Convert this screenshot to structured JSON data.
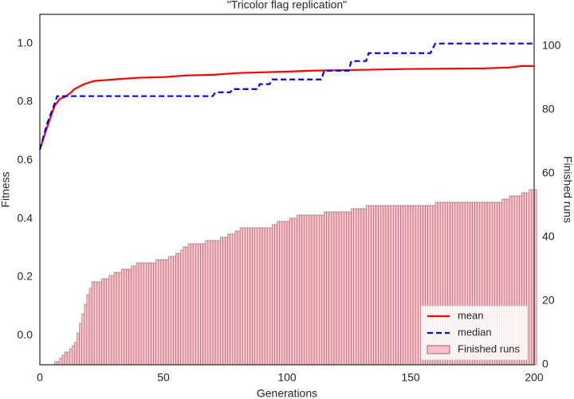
{
  "chart_data": {
    "type": "line",
    "title": "\"Tricolor flag replication\"",
    "xlabel": "Generations",
    "ylabel": "Fitness",
    "y2label": "Finished runs",
    "xlim": [
      0,
      200
    ],
    "xticks": [
      0,
      50,
      100,
      150,
      200
    ],
    "ylim": [
      -0.1,
      1.1
    ],
    "yticks": [
      {
        "value": 0,
        "label": "0.0"
      },
      0.2,
      0.4,
      0.6,
      0.8,
      {
        "value": 1,
        "label": "1.0"
      }
    ],
    "y2lim": [
      0,
      110
    ],
    "y2ticks": [
      0,
      20,
      40,
      60,
      80,
      100
    ],
    "grid": false,
    "legend": "lower right",
    "x": [
      0,
      1,
      2,
      3,
      4,
      5,
      6,
      7,
      8,
      9,
      10,
      11,
      12,
      13,
      14,
      15,
      16,
      17,
      18,
      19,
      20,
      21,
      22,
      23,
      24,
      25,
      26,
      27,
      28,
      29,
      30,
      31,
      32,
      33,
      34,
      35,
      36,
      37,
      38,
      39,
      40,
      41,
      42,
      43,
      44,
      45,
      46,
      47,
      48,
      49,
      50,
      51,
      52,
      53,
      54,
      55,
      56,
      57,
      58,
      59,
      60,
      61,
      62,
      63,
      64,
      65,
      66,
      67,
      68,
      69,
      70,
      71,
      72,
      73,
      74,
      75,
      76,
      77,
      78,
      79,
      80,
      81,
      82,
      83,
      84,
      85,
      86,
      87,
      88,
      89,
      90,
      91,
      92,
      93,
      94,
      95,
      96,
      97,
      98,
      99,
      100,
      101,
      102,
      103,
      104,
      105,
      106,
      107,
      108,
      109,
      110,
      111,
      112,
      113,
      114,
      115,
      116,
      117,
      118,
      119,
      120,
      121,
      122,
      123,
      124,
      125,
      126,
      127,
      128,
      129,
      130,
      131,
      132,
      133,
      134,
      135,
      136,
      137,
      138,
      139,
      140,
      141,
      142,
      143,
      144,
      145,
      146,
      147,
      148,
      149,
      150,
      151,
      152,
      153,
      154,
      155,
      156,
      157,
      158,
      159,
      160,
      161,
      162,
      163,
      164,
      165,
      166,
      167,
      168,
      169,
      170,
      171,
      172,
      173,
      174,
      175,
      176,
      177,
      178,
      179,
      180,
      181,
      182,
      183,
      184,
      185,
      186,
      187,
      188,
      189,
      190,
      191,
      192,
      193,
      194,
      195,
      196,
      197,
      198,
      199,
      200
    ],
    "series": [
      {
        "name": "mean",
        "color": "#ff0000",
        "linestyle": "solid",
        "x": [
          0,
          2,
          4,
          6,
          8,
          10,
          12,
          14,
          16,
          18,
          22,
          30,
          40,
          50,
          60,
          70,
          80,
          100,
          110,
          130,
          150,
          180,
          190,
          195,
          200
        ],
        "values": [
          0.637,
          0.69,
          0.74,
          0.787,
          0.81,
          0.817,
          0.828,
          0.844,
          0.853,
          0.861,
          0.872,
          0.877,
          0.883,
          0.885,
          0.891,
          0.893,
          0.899,
          0.904,
          0.907,
          0.91,
          0.913,
          0.915,
          0.918,
          0.923,
          0.923
        ]
      },
      {
        "name": "median",
        "color": "#0000ff",
        "linestyle": "dashed",
        "x": [
          0,
          3,
          6,
          7,
          70,
          71,
          77,
          78,
          88,
          89,
          93,
          94,
          114,
          115,
          125,
          126,
          132,
          133,
          158,
          160,
          200
        ],
        "values": [
          0.637,
          0.727,
          0.795,
          0.82,
          0.82,
          0.833,
          0.833,
          0.844,
          0.844,
          0.861,
          0.861,
          0.877,
          0.877,
          0.907,
          0.907,
          0.94,
          0.94,
          0.967,
          0.967,
          1.0,
          1.0
        ]
      },
      {
        "name": "Finished runs",
        "type": "bar",
        "axis": "y2",
        "color": "#ffc0cb",
        "edgecolor": "#8c6a6a",
        "values": [
          0,
          0,
          0,
          0,
          0,
          0,
          1,
          1,
          2,
          3,
          4,
          4,
          5,
          6,
          7,
          10,
          13,
          16,
          19,
          22,
          24,
          26,
          26,
          26,
          26,
          27,
          27,
          27,
          28,
          28,
          29,
          29,
          29,
          30,
          30,
          30,
          30,
          31,
          31,
          32,
          32,
          32,
          32,
          32,
          32,
          32,
          32,
          33,
          33,
          33,
          33,
          33,
          34,
          34,
          34,
          35,
          35,
          36,
          37,
          37,
          38,
          38,
          38,
          38,
          38,
          38,
          38,
          39,
          39,
          39,
          39,
          39,
          39,
          40,
          40,
          40,
          41,
          41,
          41,
          42,
          42,
          43,
          43,
          43,
          43,
          43,
          43,
          43,
          43,
          43,
          43,
          43,
          43,
          43,
          44,
          44,
          45,
          45,
          45,
          45,
          45,
          46,
          46,
          46,
          47,
          47,
          47,
          47,
          47,
          47,
          47,
          47,
          47,
          47,
          47,
          48,
          48,
          48,
          48,
          48,
          48,
          48,
          48,
          48,
          48,
          48,
          49,
          49,
          49,
          49,
          49,
          49,
          50,
          50,
          50,
          50,
          50,
          50,
          50,
          50,
          50,
          50,
          50,
          50,
          50,
          50,
          50,
          50,
          50,
          50,
          50,
          50,
          50,
          50,
          50,
          50,
          50,
          50,
          50,
          50,
          51,
          51,
          51,
          51,
          51,
          51,
          51,
          51,
          51,
          51,
          51,
          51,
          51,
          51,
          51,
          51,
          51,
          51,
          51,
          51,
          51,
          51,
          51,
          51,
          51,
          51,
          51,
          52,
          52,
          52,
          53,
          53,
          53,
          53,
          53,
          54,
          54,
          54,
          55,
          55,
          55
        ]
      }
    ]
  }
}
